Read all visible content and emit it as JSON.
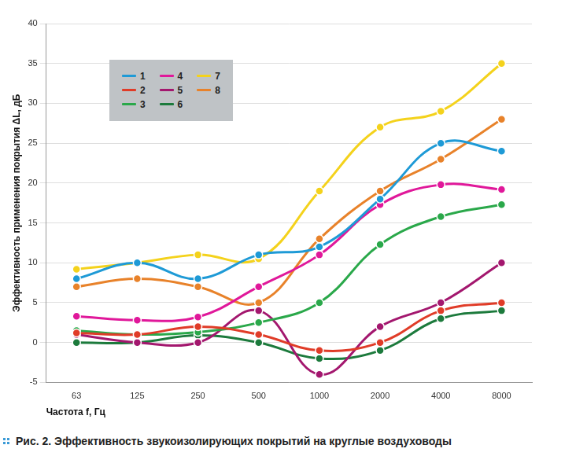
{
  "chart_data": {
    "type": "line",
    "title": "Рис. 2. Эффективность звукоизолирующих покрытий на круглые воздуховоды",
    "x_label": "Частота f, Гц",
    "y_label": "Эффективность применения покрытия ΔL, дБ",
    "categories": [
      "63",
      "125",
      "250",
      "500",
      "1000",
      "2000",
      "4000",
      "8000"
    ],
    "series": [
      {
        "name": "1",
        "color": "#1e9ad6",
        "values": [
          8,
          10,
          8,
          11,
          12,
          18,
          25,
          24
        ]
      },
      {
        "name": "2",
        "color": "#e03c28",
        "values": [
          1.2,
          1,
          2,
          1,
          -1,
          0,
          4,
          5
        ]
      },
      {
        "name": "3",
        "color": "#2aa84a",
        "values": [
          1.5,
          1,
          1.3,
          2.5,
          5,
          12.3,
          15.8,
          17.3
        ]
      },
      {
        "name": "4",
        "color": "#e0189a",
        "values": [
          3.3,
          2.8,
          3.2,
          7,
          11,
          17.3,
          19.8,
          19.2
        ]
      },
      {
        "name": "5",
        "color": "#a3176e",
        "values": [
          1,
          0,
          0,
          4,
          -4,
          2,
          5,
          10
        ]
      },
      {
        "name": "6",
        "color": "#1c7a3c",
        "values": [
          0,
          0,
          0.9,
          0,
          -2,
          -1,
          3,
          4
        ]
      },
      {
        "name": "7",
        "color": "#f4d21c",
        "values": [
          9.2,
          10,
          11,
          10.5,
          19,
          27,
          29,
          35
        ]
      },
      {
        "name": "8",
        "color": "#e8822a",
        "values": [
          7,
          8,
          7,
          5,
          13,
          19,
          23,
          28
        ]
      }
    ],
    "ylim": [
      -5,
      40
    ],
    "yticks": [
      -5,
      0,
      5,
      10,
      15,
      20,
      25,
      30,
      35,
      40
    ],
    "grid": true,
    "legend": "upper left",
    "marker": "circle"
  }
}
